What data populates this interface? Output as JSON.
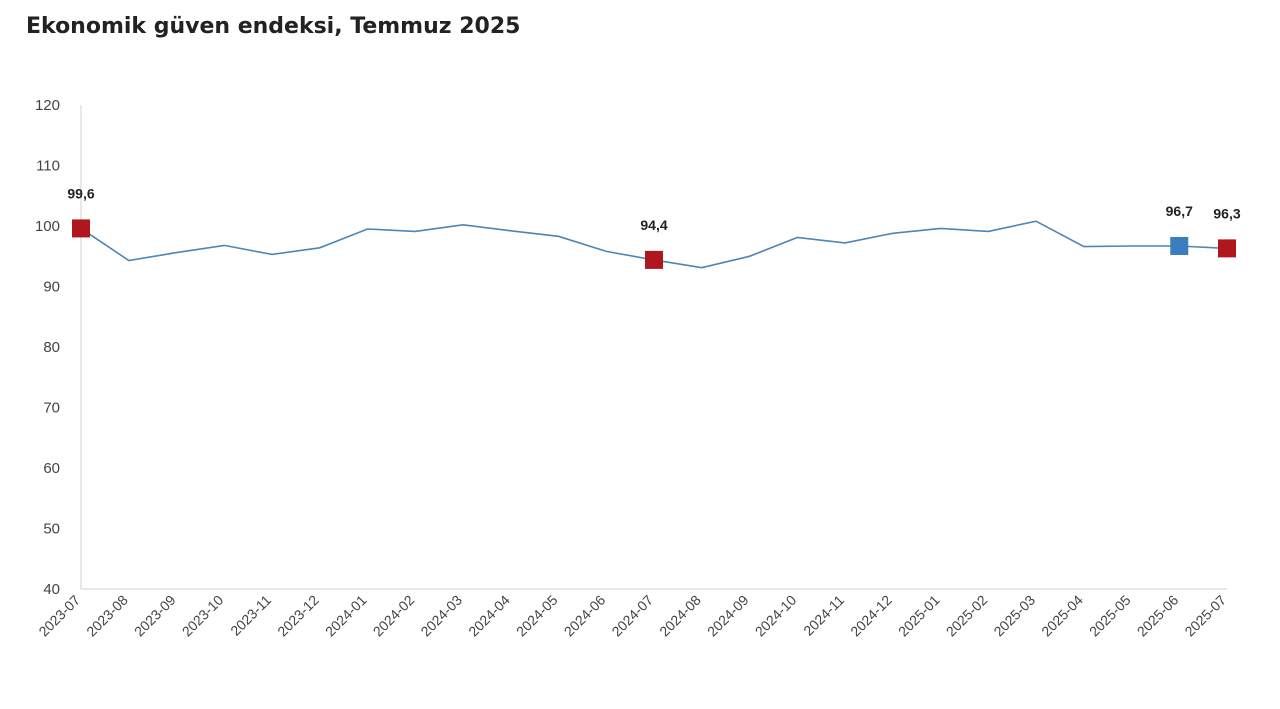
{
  "title": "Ekonomik güven endeksi, Temmuz 2025",
  "colors": {
    "line": "#4a86b8",
    "highlight_red": "#b0161e",
    "highlight_blue": "#3a7ebf",
    "axis": "#d0d0d0"
  },
  "chart_data": {
    "type": "line",
    "title": "Ekonomik güven endeksi, Temmuz 2025",
    "xlabel": "",
    "ylabel": "",
    "ylim": [
      40,
      120
    ],
    "yticks": [
      40,
      50,
      60,
      70,
      80,
      90,
      100,
      110,
      120
    ],
    "grid": false,
    "categories": [
      "2023-07",
      "2023-08",
      "2023-09",
      "2023-10",
      "2023-11",
      "2023-12",
      "2024-01",
      "2024-02",
      "2024-03",
      "2024-04",
      "2024-05",
      "2024-06",
      "2024-07",
      "2024-08",
      "2024-09",
      "2024-10",
      "2024-11",
      "2024-12",
      "2025-01",
      "2025-02",
      "2025-03",
      "2025-04",
      "2025-05",
      "2025-06",
      "2025-07"
    ],
    "series": [
      {
        "values": [
          99.6,
          94.3,
          95.6,
          96.8,
          95.3,
          96.4,
          99.5,
          99.1,
          100.2,
          99.2,
          98.3,
          95.8,
          94.4,
          93.1,
          95.0,
          98.1,
          97.2,
          98.8,
          99.6,
          99.1,
          100.8,
          96.6,
          96.7,
          96.7,
          96.3
        ]
      }
    ],
    "highlights": [
      {
        "index": 0,
        "label": "99,6",
        "color": "red"
      },
      {
        "index": 12,
        "label": "94,4",
        "color": "red"
      },
      {
        "index": 23,
        "label": "96,7",
        "color": "blue"
      },
      {
        "index": 24,
        "label": "96,3",
        "color": "red"
      }
    ]
  }
}
